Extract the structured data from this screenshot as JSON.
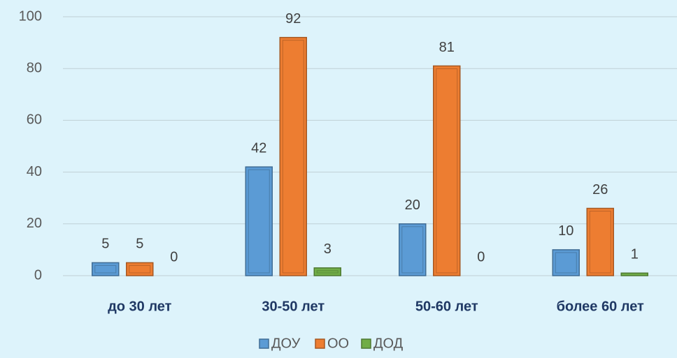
{
  "chart_data": {
    "type": "bar",
    "categories": [
      "до 30 лет",
      "30-50 лет",
      "50-60 лет",
      "более 60 лет"
    ],
    "series": [
      {
        "name": "ДОУ",
        "color": "#5b9bd5",
        "values": [
          5,
          42,
          20,
          10
        ]
      },
      {
        "name": "ОО",
        "color": "#ed7d31",
        "values": [
          5,
          92,
          81,
          26
        ]
      },
      {
        "name": "ДОД",
        "color": "#70ad47",
        "values": [
          0,
          3,
          0,
          1
        ]
      }
    ],
    "ylim": [
      0,
      100
    ],
    "yticks": [
      0,
      20,
      40,
      60,
      80,
      100
    ],
    "grid": true,
    "legend": "bottom"
  }
}
